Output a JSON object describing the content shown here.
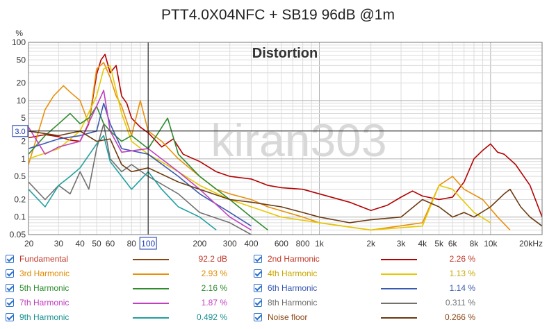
{
  "chart_data": {
    "type": "line",
    "title": "PTT4.0X04NFC + SB19 96dB @1m",
    "subtitle": "Distortion",
    "watermark": "kiran303",
    "ylabel": "%",
    "x_scale": "log",
    "y_scale": "log",
    "xlim": [
      20,
      20000
    ],
    "ylim": [
      0.05,
      100
    ],
    "x_tick_labels": [
      {
        "value": 20,
        "label": "20"
      },
      {
        "value": 30,
        "label": "30"
      },
      {
        "value": 40,
        "label": "40"
      },
      {
        "value": 50,
        "label": "50"
      },
      {
        "value": 60,
        "label": "60"
      },
      {
        "value": 80,
        "label": "80"
      },
      {
        "value": 100,
        "label": "100"
      },
      {
        "value": 200,
        "label": "200"
      },
      {
        "value": 300,
        "label": "300"
      },
      {
        "value": 400,
        "label": "400"
      },
      {
        "value": 600,
        "label": "600"
      },
      {
        "value": 800,
        "label": "800"
      },
      {
        "value": 1000,
        "label": "1k"
      },
      {
        "value": 2000,
        "label": "2k"
      },
      {
        "value": 3000,
        "label": "3k"
      },
      {
        "value": 4000,
        "label": "4k"
      },
      {
        "value": 5000,
        "label": "5k"
      },
      {
        "value": 6000,
        "label": "6k"
      },
      {
        "value": 8000,
        "label": "8k"
      },
      {
        "value": 10000,
        "label": "10k"
      },
      {
        "value": 20000,
        "label": "20kHz"
      }
    ],
    "y_tick_labels": [
      {
        "value": 100,
        "label": "100"
      },
      {
        "value": 50,
        "label": "50"
      },
      {
        "value": 20,
        "label": "20"
      },
      {
        "value": 10,
        "label": "10"
      },
      {
        "value": 5,
        "label": "5"
      },
      {
        "value": 2,
        "label": "2"
      },
      {
        "value": 1,
        "label": "1"
      },
      {
        "value": 0.5,
        "label": "0.5"
      },
      {
        "value": 0.2,
        "label": "0.2"
      },
      {
        "value": 0.1,
        "label": "0.1"
      },
      {
        "value": 0.05,
        "label": "0.05"
      }
    ],
    "cursor": {
      "x": 100,
      "y": 3.0,
      "x_label": "100",
      "y_label": "3.0"
    },
    "grid": true,
    "series": [
      {
        "name": "2nd Harmonic",
        "color": "#b30000",
        "points": [
          [
            20,
            2.3
          ],
          [
            25,
            2.6
          ],
          [
            30,
            2.4
          ],
          [
            35,
            2.1
          ],
          [
            40,
            2.0
          ],
          [
            45,
            4
          ],
          [
            50,
            28
          ],
          [
            53,
            50
          ],
          [
            56,
            62
          ],
          [
            60,
            30
          ],
          [
            65,
            40
          ],
          [
            70,
            12
          ],
          [
            75,
            9
          ],
          [
            80,
            5
          ],
          [
            90,
            3.5
          ],
          [
            100,
            2.8
          ],
          [
            120,
            1.6
          ],
          [
            140,
            2.2
          ],
          [
            160,
            1.2
          ],
          [
            200,
            0.9
          ],
          [
            250,
            0.6
          ],
          [
            300,
            0.5
          ],
          [
            400,
            0.45
          ],
          [
            500,
            0.35
          ],
          [
            600,
            0.32
          ],
          [
            800,
            0.3
          ],
          [
            1000,
            0.25
          ],
          [
            1500,
            0.18
          ],
          [
            2000,
            0.13
          ],
          [
            2500,
            0.16
          ],
          [
            3000,
            0.22
          ],
          [
            3500,
            0.28
          ],
          [
            4000,
            0.23
          ],
          [
            5000,
            0.2
          ],
          [
            6000,
            0.22
          ],
          [
            7000,
            0.4
          ],
          [
            8000,
            1.0
          ],
          [
            9000,
            1.4
          ],
          [
            10000,
            1.8
          ],
          [
            11000,
            1.3
          ],
          [
            12000,
            1.2
          ],
          [
            14000,
            0.8
          ],
          [
            17000,
            0.35
          ],
          [
            20000,
            0.1
          ]
        ]
      },
      {
        "name": "3rd Harmonic",
        "color": "#e8900c",
        "points": [
          [
            20,
            0.8
          ],
          [
            22,
            2
          ],
          [
            25,
            7
          ],
          [
            28,
            12
          ],
          [
            32,
            18
          ],
          [
            35,
            14
          ],
          [
            40,
            10
          ],
          [
            45,
            4
          ],
          [
            50,
            35
          ],
          [
            55,
            45
          ],
          [
            60,
            25
          ],
          [
            65,
            12
          ],
          [
            70,
            8
          ],
          [
            80,
            2.5
          ],
          [
            90,
            10
          ],
          [
            100,
            3
          ],
          [
            120,
            2
          ],
          [
            150,
            1
          ],
          [
            200,
            0.5
          ],
          [
            250,
            0.3
          ],
          [
            300,
            0.25
          ],
          [
            400,
            0.2
          ],
          [
            500,
            0.15
          ],
          [
            800,
            0.1
          ],
          [
            1000,
            0.08
          ],
          [
            2000,
            0.06
          ],
          [
            4000,
            0.08
          ],
          [
            5000,
            0.35
          ],
          [
            6000,
            0.5
          ],
          [
            7000,
            0.3
          ],
          [
            9000,
            0.2
          ],
          [
            11000,
            0.1
          ],
          [
            13000,
            0.06
          ]
        ]
      },
      {
        "name": "4th Harmonic",
        "color": "#e6c800",
        "points": [
          [
            20,
            1.0
          ],
          [
            30,
            1.5
          ],
          [
            40,
            3
          ],
          [
            50,
            12
          ],
          [
            55,
            35
          ],
          [
            60,
            40
          ],
          [
            70,
            6
          ],
          [
            80,
            2
          ],
          [
            100,
            1.2
          ],
          [
            150,
            0.6
          ],
          [
            200,
            0.35
          ],
          [
            300,
            0.2
          ],
          [
            400,
            0.15
          ],
          [
            600,
            0.1
          ],
          [
            1000,
            0.08
          ],
          [
            2000,
            0.06
          ],
          [
            4000,
            0.07
          ],
          [
            5000,
            0.35
          ],
          [
            6000,
            0.3
          ],
          [
            8000,
            0.12
          ],
          [
            10000,
            0.08
          ]
        ]
      },
      {
        "name": "5th Harmonic",
        "color": "#2e8b2e",
        "points": [
          [
            20,
            1.2
          ],
          [
            25,
            2.5
          ],
          [
            30,
            4
          ],
          [
            35,
            6
          ],
          [
            40,
            4
          ],
          [
            45,
            5
          ],
          [
            50,
            8
          ],
          [
            55,
            4
          ],
          [
            60,
            3
          ],
          [
            70,
            2
          ],
          [
            80,
            2.5
          ],
          [
            100,
            1.5
          ],
          [
            130,
            5
          ],
          [
            150,
            1.2
          ],
          [
            200,
            0.5
          ],
          [
            300,
            0.2
          ],
          [
            400,
            0.1
          ],
          [
            500,
            0.06
          ]
        ]
      },
      {
        "name": "6th Harmonic",
        "color": "#3a5ab0",
        "points": [
          [
            20,
            1.5
          ],
          [
            30,
            2.2
          ],
          [
            40,
            2.5
          ],
          [
            50,
            3
          ],
          [
            55,
            9
          ],
          [
            60,
            4
          ],
          [
            70,
            1.5
          ],
          [
            100,
            1.2
          ],
          [
            150,
            0.5
          ],
          [
            200,
            0.25
          ],
          [
            300,
            0.12
          ],
          [
            400,
            0.07
          ]
        ]
      },
      {
        "name": "7th Harmonic",
        "color": "#c040c0",
        "points": [
          [
            20,
            3.5
          ],
          [
            25,
            1.2
          ],
          [
            30,
            1.6
          ],
          [
            40,
            2
          ],
          [
            50,
            8
          ],
          [
            55,
            15
          ],
          [
            60,
            3
          ],
          [
            70,
            1.3
          ],
          [
            100,
            1.5
          ],
          [
            150,
            0.6
          ],
          [
            200,
            0.3
          ],
          [
            300,
            0.1
          ],
          [
            400,
            0.06
          ]
        ]
      },
      {
        "name": "8th Harmonic",
        "color": "#707070",
        "points": [
          [
            20,
            0.4
          ],
          [
            25,
            0.2
          ],
          [
            30,
            0.35
          ],
          [
            35,
            0.25
          ],
          [
            40,
            0.6
          ],
          [
            45,
            0.3
          ],
          [
            50,
            1.5
          ],
          [
            55,
            4
          ],
          [
            60,
            1
          ],
          [
            70,
            0.6
          ],
          [
            80,
            0.8
          ],
          [
            100,
            0.5
          ],
          [
            150,
            0.25
          ],
          [
            200,
            0.12
          ],
          [
            300,
            0.08
          ],
          [
            400,
            0.05
          ]
        ]
      },
      {
        "name": "9th Harmonic",
        "color": "#20a0a0",
        "points": [
          [
            20,
            0.3
          ],
          [
            25,
            0.15
          ],
          [
            30,
            0.35
          ],
          [
            35,
            0.5
          ],
          [
            40,
            0.7
          ],
          [
            50,
            1.8
          ],
          [
            55,
            2.5
          ],
          [
            60,
            0.9
          ],
          [
            70,
            0.5
          ],
          [
            80,
            0.3
          ],
          [
            100,
            0.6
          ],
          [
            120,
            0.3
          ],
          [
            150,
            0.15
          ],
          [
            200,
            0.1
          ],
          [
            250,
            0.06
          ]
        ]
      },
      {
        "name": "Noise floor",
        "color": "#6b3a10",
        "points": [
          [
            20,
            3.0
          ],
          [
            30,
            2.5
          ],
          [
            40,
            3
          ],
          [
            50,
            2
          ],
          [
            60,
            2.2
          ],
          [
            70,
            0.8
          ],
          [
            80,
            0.6
          ],
          [
            100,
            0.7
          ],
          [
            150,
            0.4
          ],
          [
            200,
            0.3
          ],
          [
            300,
            0.2
          ],
          [
            400,
            0.18
          ],
          [
            600,
            0.15
          ],
          [
            800,
            0.12
          ],
          [
            1000,
            0.1
          ],
          [
            1500,
            0.08
          ],
          [
            2000,
            0.09
          ],
          [
            3000,
            0.1
          ],
          [
            4000,
            0.2
          ],
          [
            5000,
            0.15
          ],
          [
            6000,
            0.1
          ],
          [
            7000,
            0.12
          ],
          [
            8000,
            0.1
          ],
          [
            10000,
            0.15
          ],
          [
            12000,
            0.25
          ],
          [
            13000,
            0.3
          ],
          [
            15000,
            0.15
          ],
          [
            17000,
            0.1
          ],
          [
            20000,
            0.07
          ]
        ]
      }
    ]
  },
  "legend": [
    {
      "name": "Fundamental",
      "value": "92.2 dB",
      "color": "#8b4513",
      "text_color": "#c0392b"
    },
    {
      "name": "2nd Harmonic",
      "value": "2.26 %",
      "color": "#b30000",
      "text_color": "#c0392b"
    },
    {
      "name": "3rd Harmonic",
      "value": "2.93 %",
      "color": "#e8900c",
      "text_color": "#e08a00"
    },
    {
      "name": "4th Harmonic",
      "value": "1.13 %",
      "color": "#e6c800",
      "text_color": "#c8a800"
    },
    {
      "name": "5th Harmonic",
      "value": "2.16 %",
      "color": "#2e8b2e",
      "text_color": "#2e8b2e"
    },
    {
      "name": "6th Harmonic",
      "value": "1.14 %",
      "color": "#3a5ab0",
      "text_color": "#3a5ab0"
    },
    {
      "name": "7th Harmonic",
      "value": "1.87 %",
      "color": "#c040c0",
      "text_color": "#c040c0"
    },
    {
      "name": "8th Harmonic",
      "value": "0.311 %",
      "color": "#707070",
      "text_color": "#707070"
    },
    {
      "name": "9th Harmonic",
      "value": "0.492 %",
      "color": "#20a0a0",
      "text_color": "#1a9090"
    },
    {
      "name": "Noise floor",
      "value": "0.266 %",
      "color": "#6b3a10",
      "text_color": "#8b4513"
    }
  ]
}
